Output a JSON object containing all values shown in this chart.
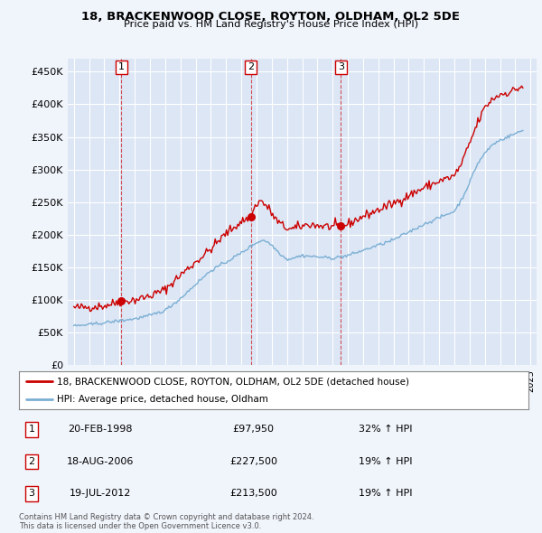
{
  "title": "18, BRACKENWOOD CLOSE, ROYTON, OLDHAM, OL2 5DE",
  "subtitle": "Price paid vs. HM Land Registry's House Price Index (HPI)",
  "ylabel_ticks": [
    "£0",
    "£50K",
    "£100K",
    "£150K",
    "£200K",
    "£250K",
    "£300K",
    "£350K",
    "£400K",
    "£450K"
  ],
  "ytick_values": [
    0,
    50000,
    100000,
    150000,
    200000,
    250000,
    300000,
    350000,
    400000,
    450000
  ],
  "ylim": [
    0,
    470000
  ],
  "xlim_start": 1994.6,
  "xlim_end": 2025.4,
  "property_color": "#cc0000",
  "hpi_color": "#7bafd4",
  "background_color": "#f0f4fb",
  "plot_bg_color": "#dce6f5",
  "grid_color": "#ffffff",
  "transactions": [
    {
      "num": 1,
      "date_str": "20-FEB-1998",
      "price": 97950,
      "pct": "32%",
      "date_x": 1998.13
    },
    {
      "num": 2,
      "date_str": "18-AUG-2006",
      "price": 227500,
      "pct": "19%",
      "date_x": 2006.63
    },
    {
      "num": 3,
      "date_str": "19-JUL-2012",
      "price": 213500,
      "pct": "19%",
      "date_x": 2012.55
    }
  ],
  "legend_label_property": "18, BRACKENWOOD CLOSE, ROYTON, OLDHAM, OL2 5DE (detached house)",
  "legend_label_hpi": "HPI: Average price, detached house, Oldham",
  "footnote": "Contains HM Land Registry data © Crown copyright and database right 2024.\nThis data is licensed under the Open Government Licence v3.0."
}
